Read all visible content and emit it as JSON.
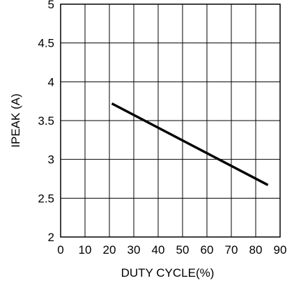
{
  "chart_data": {
    "type": "line",
    "title": "",
    "xlabel": "DUTY CYCLE(%)",
    "ylabel": "IPEAK (A)",
    "xlim": [
      0,
      90
    ],
    "ylim": [
      2,
      5
    ],
    "x_ticks": [
      0,
      10,
      20,
      30,
      40,
      50,
      60,
      70,
      80,
      90
    ],
    "y_ticks": [
      2,
      2.5,
      3,
      3.5,
      4,
      4.5,
      5
    ],
    "x_tick_labels": [
      "0",
      "10",
      "20",
      "30",
      "40",
      "50",
      "60",
      "70",
      "80",
      "90"
    ],
    "y_tick_labels": [
      "2",
      "2.5",
      "3",
      "3.5",
      "4",
      "4.5",
      "5"
    ],
    "grid": true,
    "series": [
      {
        "x": [
          21,
          85
        ],
        "y": [
          3.72,
          2.67
        ]
      }
    ]
  }
}
